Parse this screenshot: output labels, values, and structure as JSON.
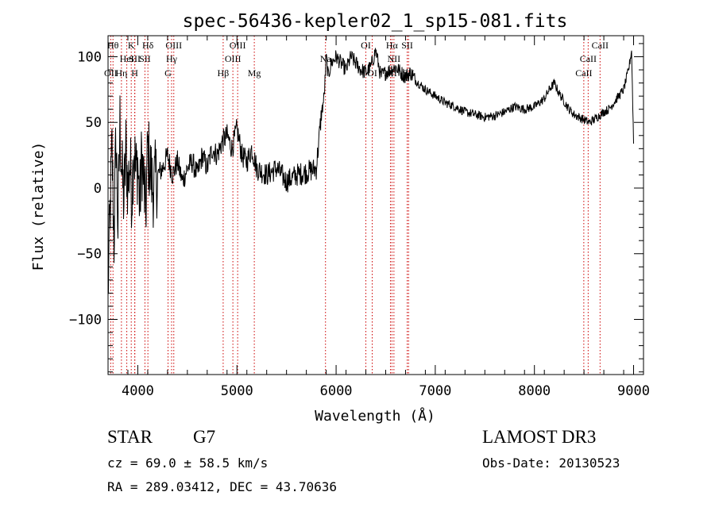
{
  "chart_data": {
    "type": "line",
    "title": "spec-56436-kepler02_1_sp15-081.fits",
    "xlabel": "Wavelength (Å)",
    "ylabel": "Flux (relative)",
    "xlim": [
      3700,
      9100
    ],
    "ylim": [
      -142,
      116
    ],
    "x_ticks": [
      4000,
      5000,
      6000,
      7000,
      8000,
      9000
    ],
    "y_ticks": [
      -100,
      -50,
      0,
      50,
      100
    ],
    "series": [
      {
        "name": "spectrum",
        "x": [
          3700,
          3720,
          3740,
          3760,
          3780,
          3800,
          3820,
          3840,
          3860,
          3880,
          3900,
          3920,
          3940,
          3960,
          3980,
          4000,
          4020,
          4040,
          4060,
          4080,
          4100,
          4150,
          4200,
          4250,
          4300,
          4350,
          4400,
          4450,
          4500,
          4550,
          4600,
          4650,
          4700,
          4750,
          4800,
          4850,
          4900,
          4950,
          5000,
          5050,
          5100,
          5150,
          5200,
          5300,
          5400,
          5500,
          5600,
          5700,
          5800,
          5850,
          5880,
          5900,
          5920,
          5950,
          6000,
          6050,
          6100,
          6150,
          6200,
          6250,
          6300,
          6350,
          6400,
          6450,
          6500,
          6550,
          6600,
          6650,
          6700,
          6750,
          6800,
          6900,
          7000,
          7100,
          7200,
          7300,
          7400,
          7500,
          7600,
          7700,
          7800,
          7900,
          8000,
          8100,
          8150,
          8200,
          8250,
          8300,
          8350,
          8400,
          8450,
          8500,
          8550,
          8600,
          8650,
          8700,
          8750,
          8800,
          8850,
          8900,
          8950,
          8980,
          9000
        ],
        "y": [
          -80,
          -20,
          30,
          -40,
          40,
          -30,
          50,
          10,
          -10,
          30,
          0,
          20,
          -5,
          35,
          10,
          20,
          -15,
          25,
          5,
          -20,
          30,
          0,
          10,
          15,
          25,
          10,
          20,
          5,
          15,
          20,
          10,
          25,
          15,
          30,
          25,
          35,
          40,
          30,
          45,
          25,
          20,
          30,
          15,
          10,
          15,
          5,
          10,
          12,
          15,
          55,
          70,
          100,
          85,
          95,
          100,
          95,
          90,
          100,
          95,
          90,
          88,
          92,
          105,
          85,
          88,
          90,
          92,
          88,
          85,
          88,
          82,
          75,
          70,
          65,
          62,
          58,
          56,
          54,
          55,
          58,
          62,
          60,
          62,
          68,
          75,
          80,
          72,
          66,
          60,
          56,
          54,
          52,
          50,
          52,
          55,
          58,
          60,
          65,
          70,
          75,
          90,
          105,
          35
        ]
      }
    ],
    "lines": [
      {
        "name": "OII",
        "x": 3727,
        "row": 3
      },
      {
        "name": "Hθ",
        "x": 3750,
        "row": 1
      },
      {
        "name": "Hη",
        "x": 3835,
        "row": 3
      },
      {
        "name": "HeI",
        "x": 3889,
        "row": 2
      },
      {
        "name": "K",
        "x": 3934,
        "row": 1
      },
      {
        "name": "SII",
        "x": 3970,
        "row": 2
      },
      {
        "name": "H",
        "x": 3969,
        "row": 3
      },
      {
        "name": "Hδ",
        "x": 4102,
        "row": 1
      },
      {
        "name": "SII",
        "x": 4072,
        "row": 2
      },
      {
        "name": "OIII",
        "x": 4363,
        "row": 1
      },
      {
        "name": "Hγ",
        "x": 4341,
        "row": 2
      },
      {
        "name": "G",
        "x": 4305,
        "row": 3
      },
      {
        "name": "Hβ",
        "x": 4861,
        "row": 3
      },
      {
        "name": "OIII",
        "x": 5007,
        "row": 1
      },
      {
        "name": "OIII",
        "x": 4959,
        "row": 2
      },
      {
        "name": "Mg",
        "x": 5175,
        "row": 3
      },
      {
        "name": "Na",
        "x": 5893,
        "row": 2
      },
      {
        "name": "OI",
        "x": 6300,
        "row": 1
      },
      {
        "name": "OI",
        "x": 6364,
        "row": 3
      },
      {
        "name": "Hα",
        "x": 6563,
        "row": 1
      },
      {
        "name": "SII",
        "x": 6717,
        "row": 1
      },
      {
        "name": "NII",
        "x": 6548,
        "row": 3
      },
      {
        "name": "NII",
        "x": 6583,
        "row": 2
      },
      {
        "name": "SII",
        "x": 6731,
        "row": 3
      },
      {
        "name": "CaII",
        "x": 8662,
        "row": 1
      },
      {
        "name": "CaII",
        "x": 8542,
        "row": 2
      },
      {
        "name": "CaII",
        "x": 8498,
        "row": 3
      }
    ],
    "grid": false,
    "legend": "none"
  },
  "info": {
    "class": "STAR",
    "subclass": "G7",
    "survey": "LAMOST DR3",
    "cz": "cz = 69.0 ± 58.5 km/s",
    "obsdate": "Obs-Date: 20130523",
    "coords": "RA = 289.03412, DEC =  43.70636"
  },
  "colors": {
    "axis": "#000000",
    "line": "#000000",
    "marker": "#cc0000"
  }
}
